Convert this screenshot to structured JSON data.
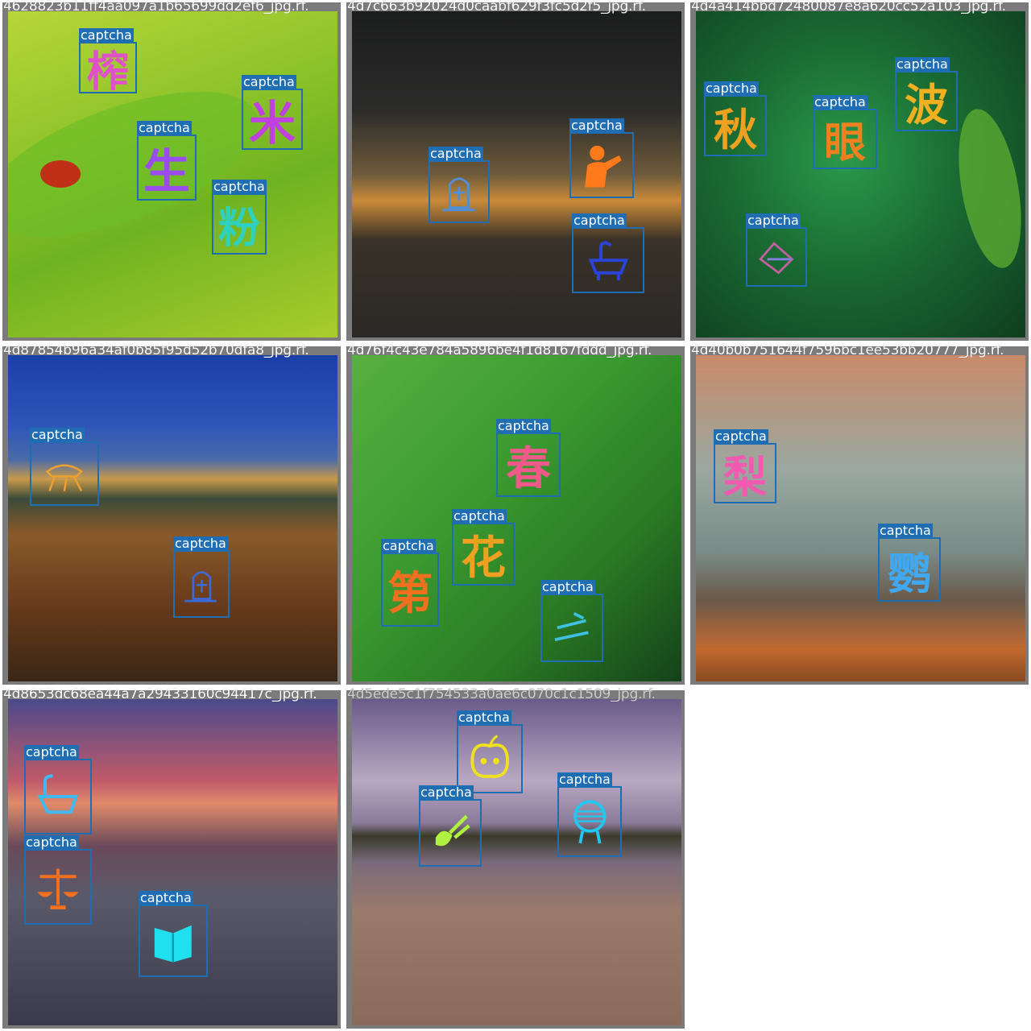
{
  "grid": {
    "tiles": [
      {
        "filename": "4628823b11ff4aa097a1b65699dd2ef6_jpg.rf.",
        "background": "linear-gradient(160deg,#b7d63a 0%,#8fc42a 35%,#6fb321 60%,#a9cc2c 100%)",
        "detections": [
          {
            "label": "captcha",
            "glyph": "榨",
            "color": "#e050c8"
          },
          {
            "label": "captcha",
            "glyph": "米",
            "color": "#c040e0"
          },
          {
            "label": "captcha",
            "glyph": "生",
            "color": "#9a4cf0"
          },
          {
            "label": "captcha",
            "glyph": "粉",
            "color": "#2fd0c0"
          }
        ]
      },
      {
        "filename": "4d7c663b92024d0caabf629f3fc5d2f5_jpg.rf.",
        "background": "linear-gradient(180deg,#1c1d1d 0%,#2b2b2a 30%,#6e5a3a 50%,#c98a3a 58%,#3a3228 70%,#2a2826 100%)",
        "detections": [
          {
            "label": "captcha",
            "glyph": "tombstone",
            "color": "#4f8fd8"
          },
          {
            "label": "captcha",
            "glyph": "person",
            "color": "#ff7a1a"
          },
          {
            "label": "captcha",
            "glyph": "sink",
            "color": "#2a44d8"
          }
        ]
      },
      {
        "filename": "4d4a414bbd72480087e8a620cc52a103_jpg.rf.",
        "background": "radial-gradient(circle at 45% 45%,#2a9a4a 0%,#1a6b33 45%,#0f3d1f 100%)",
        "detections": [
          {
            "label": "captcha",
            "glyph": "秋",
            "color": "#f0a020"
          },
          {
            "label": "captcha",
            "glyph": "眼",
            "color": "#f08020"
          },
          {
            "label": "captcha",
            "glyph": "波",
            "color": "#f0b020"
          },
          {
            "label": "captcha",
            "glyph": "handle",
            "color": "#c060a0"
          }
        ]
      },
      {
        "filename": "4d87854b96a34af0b85f95d52b70dfa8_jpg.rf.",
        "background": "linear-gradient(180deg,#1a3fa8 0%,#2e57b8 22%,#4a6aa8 32%,#c89a4a 38%,#3b4a3a 44%,#8a5a2a 55%,#6a3c1c 75%,#3a2614 100%)",
        "detections": [
          {
            "label": "captcha",
            "glyph": "grasshopper",
            "color": "#f0a030"
          },
          {
            "label": "captcha",
            "glyph": "tombstone",
            "color": "#3a6ad8"
          }
        ]
      },
      {
        "filename": "4d76f4c43e784a5896be4f1d8167fddd_jpg.rf.",
        "background": "linear-gradient(135deg,#58b040 0%,#3a9a30 40%,#2a7a24 70%,#15421a 100%)",
        "detections": [
          {
            "label": "captcha",
            "glyph": "春",
            "color": "#f05a8a"
          },
          {
            "label": "captcha",
            "glyph": "花",
            "color": "#f0a020"
          },
          {
            "label": "captcha",
            "glyph": "第",
            "color": "#f07020"
          },
          {
            "label": "captcha",
            "glyph": "lines",
            "color": "#40c0e0"
          }
        ]
      },
      {
        "filename": "4d40b0b751644f7596bc1ee53bb20777_jpg.rf.",
        "background": "linear-gradient(180deg,#c98a6a 0%,#9aa8a0 35%,#7a8c88 60%,#6a5a4a 75%,#c06a30 90%,#8a4a20 100%)",
        "detections": [
          {
            "label": "captcha",
            "glyph": "梨",
            "color": "#f05ab0"
          },
          {
            "label": "captcha",
            "glyph": "鹦",
            "color": "#40a8f0"
          }
        ]
      },
      {
        "filename": "4d8653dc68ea44a7a29433160c94417c_jpg.rf.",
        "background": "linear-gradient(180deg,#4a4a8a 0%,#c05a6a 25%,#e08a6a 32%,#6a4a5a 45%,#5a5a6a 60%,#3a3a4a 100%)",
        "detections": [
          {
            "label": "captcha",
            "glyph": "bathtub",
            "color": "#40b8f0"
          },
          {
            "label": "captcha",
            "glyph": "scales",
            "color": "#f07020"
          },
          {
            "label": "captcha",
            "glyph": "book",
            "color": "#20e0f0"
          }
        ]
      },
      {
        "filename": "4d5ede5c1f754533a0ae6c070c1c1509_jpg.rf.",
        "background": "linear-gradient(180deg,#6a5a8a 0%,#b8a8c0 25%,#8a7a9a 38%,#3a3a2a 42%,#7a6a7a 50%,#9a7a6a 65%,#8a6a5a 100%)",
        "detections": [
          {
            "label": "captcha",
            "glyph": "apple",
            "color": "#f0e020"
          },
          {
            "label": "captcha",
            "glyph": "cutter",
            "color": "#b0f040"
          },
          {
            "label": "captcha",
            "glyph": "grill",
            "color": "#20c8f0"
          }
        ]
      }
    ]
  }
}
